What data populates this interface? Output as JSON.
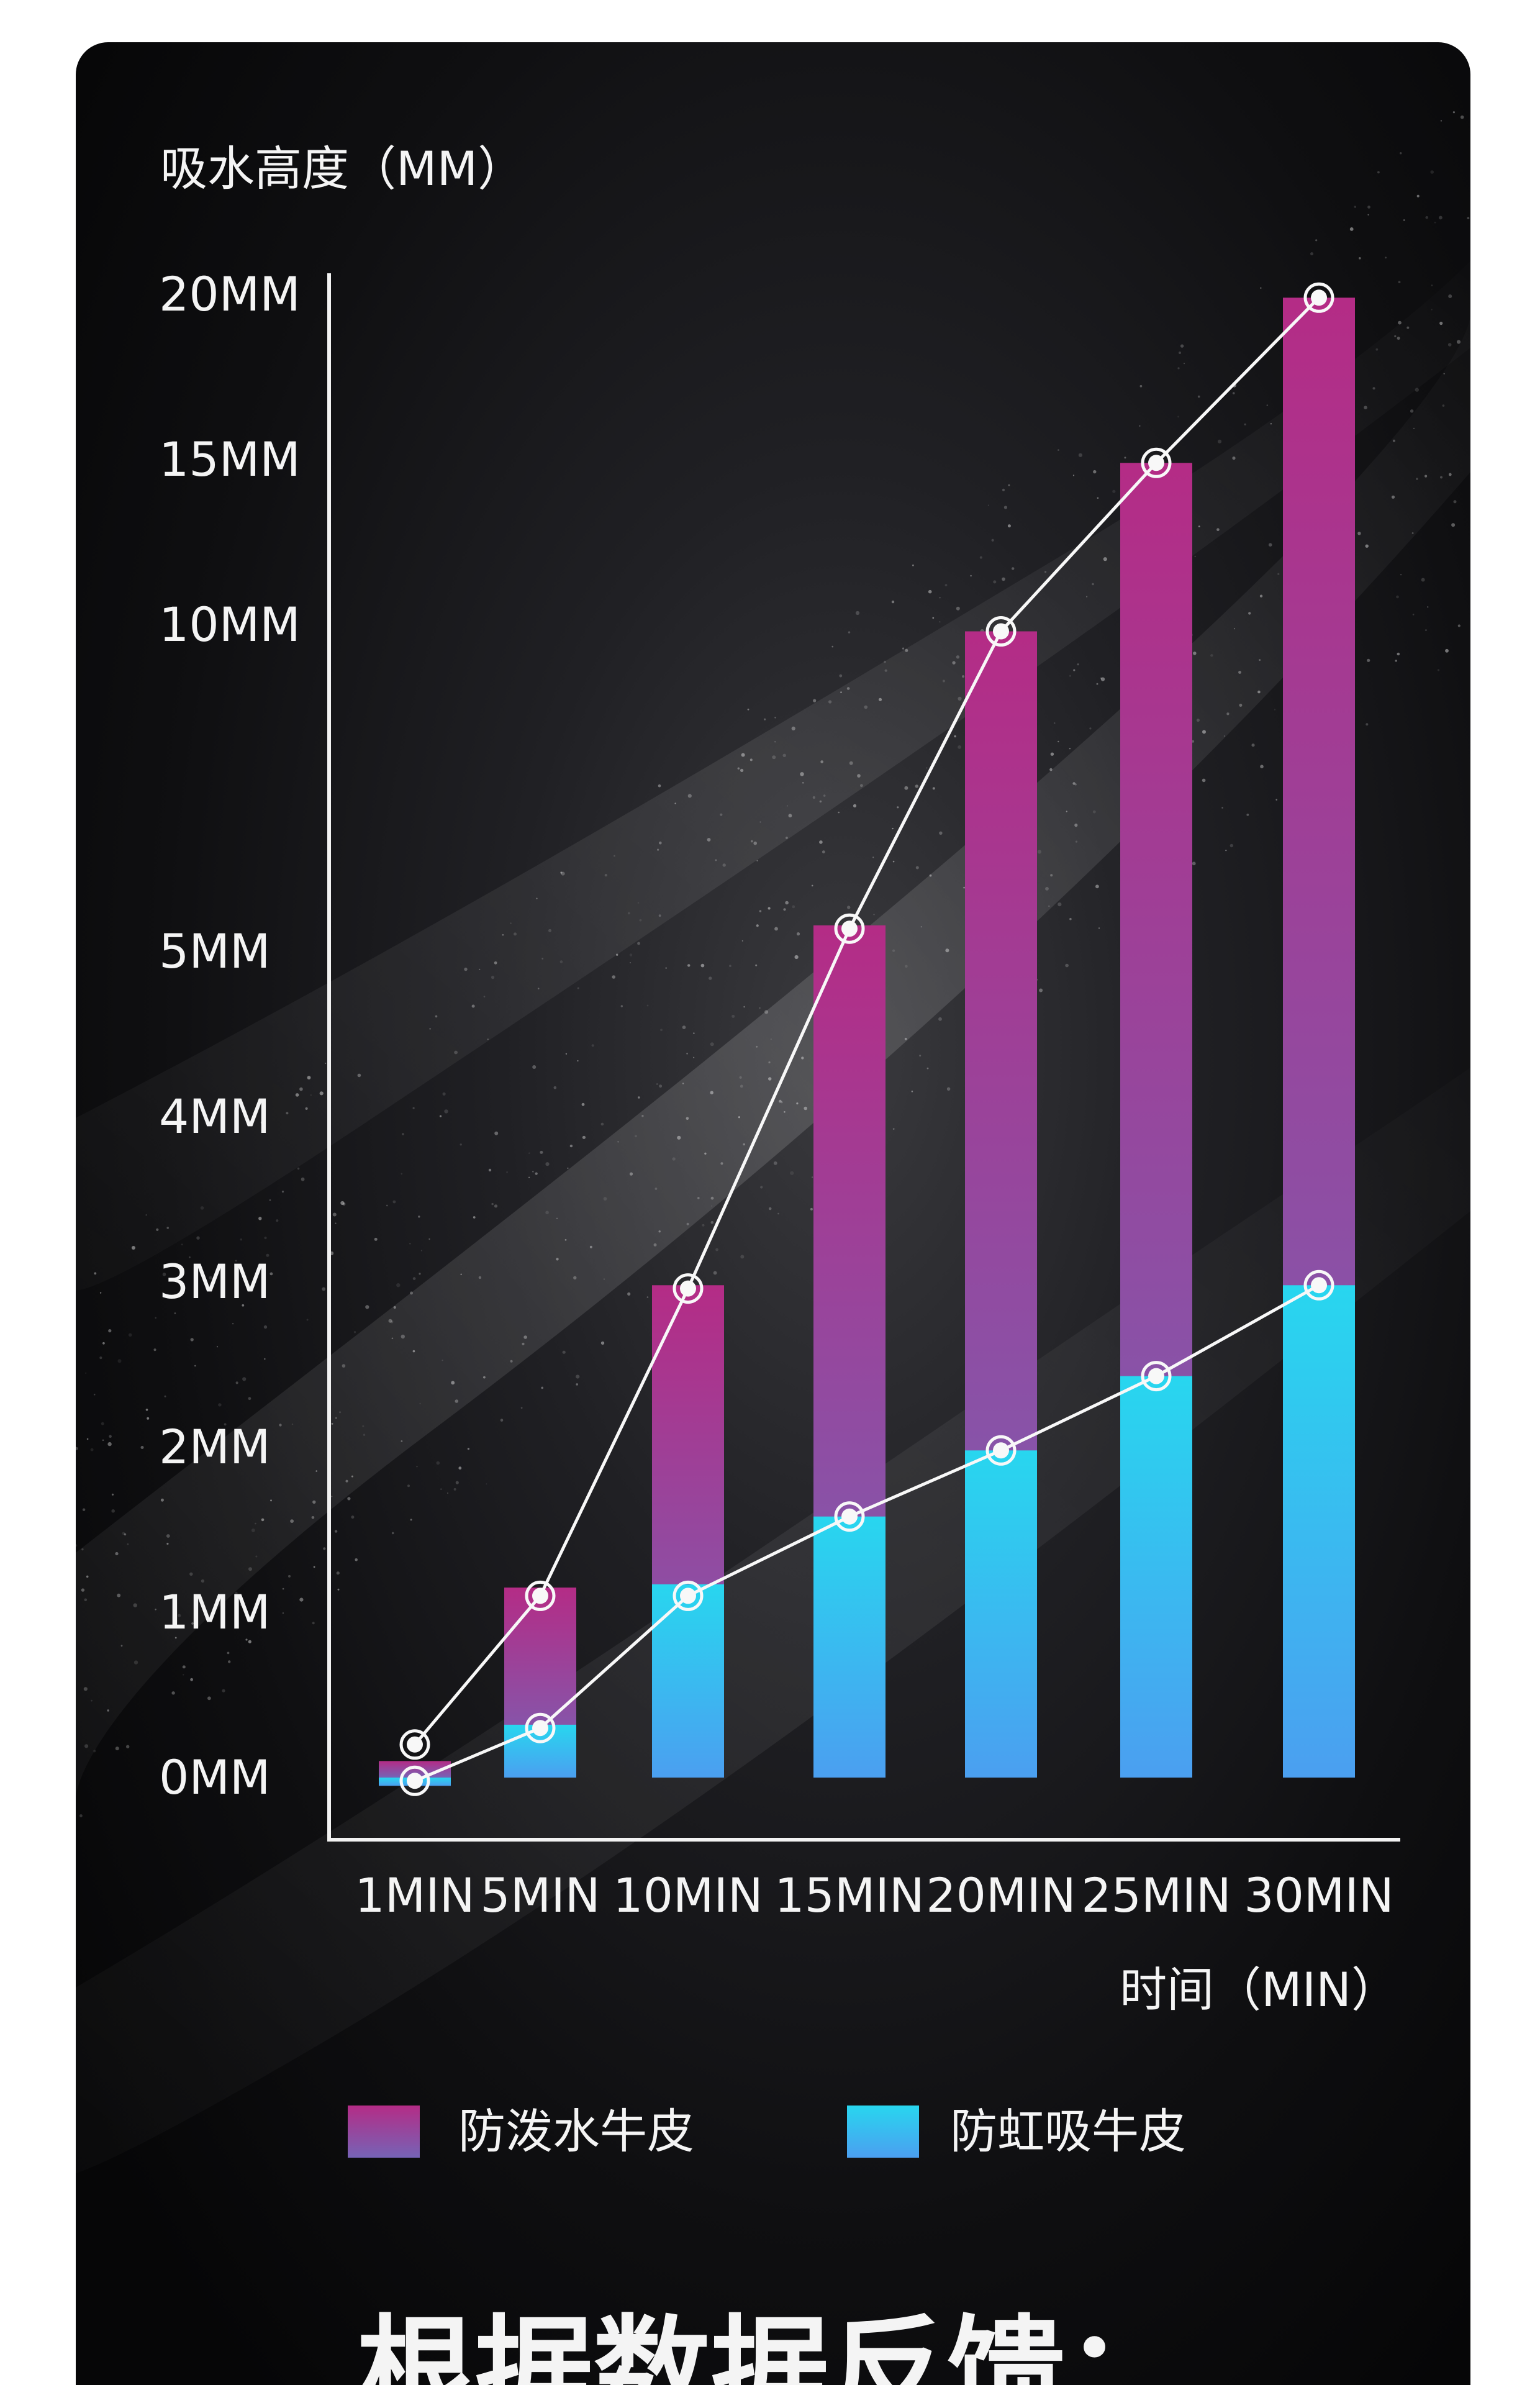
{
  "colors": {
    "background": "#ffffff",
    "panel": "#0b0b0d",
    "axis": "#f2f2f2",
    "text": "#f4f4f4",
    "pink": "#b42c86",
    "purple": "#7663b6",
    "cyan": "#28d6ef",
    "blue": "#4b9ff0",
    "line": "#f8f8f8"
  },
  "chart_data": {
    "type": "bar",
    "ylabel": "吸水高度（MM）",
    "xlabel": "时间（MIN）",
    "y_ticks": [
      "20MM",
      "15MM",
      "10MM",
      "5MM",
      "4MM",
      "3MM",
      "2MM",
      "1MM",
      "0MM"
    ],
    "y_tick_values": [
      20,
      15,
      10,
      5,
      4,
      3,
      2,
      1,
      0
    ],
    "categories": [
      "1MIN",
      "5MIN",
      "10MIN",
      "15MIN",
      "20MIN",
      "25MIN",
      "30MIN"
    ],
    "series": [
      {
        "name": "防泼水牛皮",
        "values": [
          0.1,
          1.15,
          2.98,
          5.4,
          9.9,
          14.9,
          19.9
        ],
        "marker_values": [
          0.2,
          1.1,
          2.96,
          5.35,
          9.9,
          14.9,
          19.9
        ],
        "color_top": "#b42c86",
        "color_bottom": "#7663b6"
      },
      {
        "name": "防虹吸牛皮",
        "values": [
          -0.05,
          0.32,
          1.17,
          1.58,
          1.98,
          2.43,
          2.98
        ],
        "marker_values": [
          -0.02,
          0.3,
          1.1,
          1.58,
          1.98,
          2.43,
          2.98
        ],
        "color_top": "#28d6ef",
        "color_bottom": "#4b9ff0"
      }
    ],
    "legend_position": "bottom-left"
  },
  "footer": {
    "heading": "根据数据反馈："
  }
}
